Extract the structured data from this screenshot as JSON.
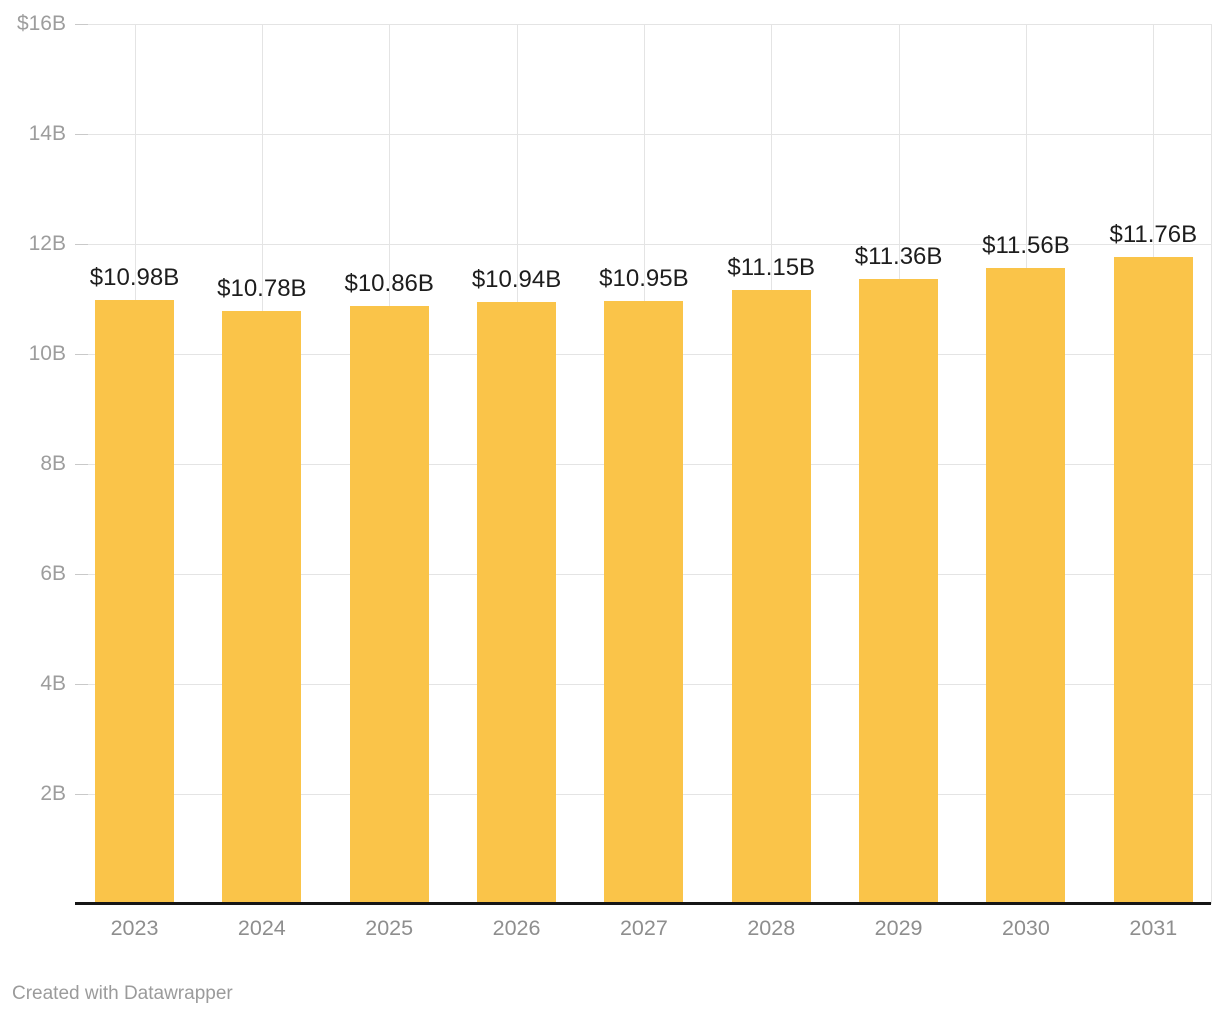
{
  "chart": {
    "footer_credit": "Created with Datawrapper"
  },
  "chart_data": {
    "type": "bar",
    "categories": [
      "2023",
      "2024",
      "2025",
      "2026",
      "2027",
      "2028",
      "2029",
      "2030",
      "2031"
    ],
    "values": [
      10.98,
      10.78,
      10.86,
      10.94,
      10.95,
      11.15,
      11.36,
      11.56,
      11.76
    ],
    "bar_labels": [
      "$10.98B",
      "$10.78B",
      "$10.86B",
      "$10.94B",
      "$10.95B",
      "$11.15B",
      "$11.36B",
      "$11.56B",
      "$11.76B"
    ],
    "title": "",
    "xlabel": "",
    "ylabel": "",
    "ylim": [
      0,
      16
    ],
    "y_ticks": [
      {
        "value": 16,
        "label": "$16B"
      },
      {
        "value": 14,
        "label": "14B"
      },
      {
        "value": 12,
        "label": "12B"
      },
      {
        "value": 10,
        "label": "10B"
      },
      {
        "value": 8,
        "label": "8B"
      },
      {
        "value": 6,
        "label": "6B"
      },
      {
        "value": 4,
        "label": "4B"
      },
      {
        "value": 2,
        "label": "2B"
      }
    ],
    "grid": true,
    "legend": "none",
    "colors": {
      "bar": "#FAC449",
      "value_label": "#1D1D1D",
      "axis_label_y": "#9D9D9D",
      "axis_label_x": "#8E8E8E",
      "gridline": "#E4E4E4",
      "tick": "#C9C9C9",
      "axis_line": "#161616",
      "background": "#FFFFFF",
      "footer_text": "#9B9B9B"
    }
  }
}
